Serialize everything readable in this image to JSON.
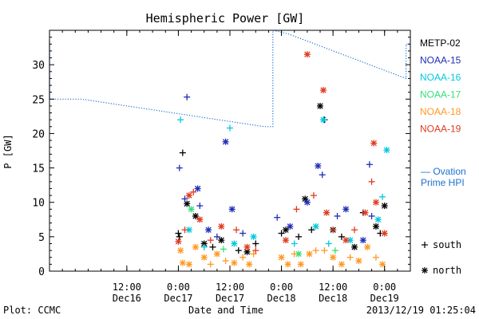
{
  "chart_data": {
    "type": "scatter",
    "title": "Hemispheric Power [GW]",
    "ylabel": "P [GW]",
    "xlabel": "Date and Time",
    "ylim": [
      0,
      35
    ],
    "yticks": [
      0,
      5,
      10,
      15,
      20,
      25,
      30
    ],
    "xlim": [
      "2013-12-15T18:00",
      "2013-12-19T06:00"
    ],
    "xticks": [
      {
        "time": "2013-12-16T12:00",
        "line1": "12:00",
        "line2": "Dec16"
      },
      {
        "time": "2013-12-17T00:00",
        "line1": "0:00",
        "line2": "Dec17"
      },
      {
        "time": "2013-12-17T12:00",
        "line1": "12:00",
        "line2": "Dec17"
      },
      {
        "time": "2013-12-18T00:00",
        "line1": "0:00",
        "line2": "Dec18"
      },
      {
        "time": "2013-12-18T12:00",
        "line1": "12:00",
        "line2": "Dec18"
      },
      {
        "time": "2013-12-19T00:00",
        "line1": "0:00",
        "line2": "Dec19"
      }
    ],
    "series": [
      {
        "name": "METP-02",
        "color": "#000000",
        "points": [
          {
            "t": "2013-12-17T00:00",
            "p": 5.5,
            "m": "+"
          },
          {
            "t": "2013-12-17T00:15",
            "p": 5.0,
            "m": "+"
          },
          {
            "t": "2013-12-17T01:00",
            "p": 17.2,
            "m": "+"
          },
          {
            "t": "2013-12-17T02:00",
            "p": 9.8,
            "m": "*"
          },
          {
            "t": "2013-12-17T04:00",
            "p": 8.0,
            "m": "*"
          },
          {
            "t": "2013-12-17T06:00",
            "p": 4.0,
            "m": "*"
          },
          {
            "t": "2013-12-17T08:00",
            "p": 3.5,
            "m": "+"
          },
          {
            "t": "2013-12-17T10:00",
            "p": 4.5,
            "m": "*"
          },
          {
            "t": "2013-12-17T14:00",
            "p": 3.0,
            "m": "+"
          },
          {
            "t": "2013-12-17T16:00",
            "p": 2.8,
            "m": "*"
          },
          {
            "t": "2013-12-17T18:00",
            "p": 4.0,
            "m": "+"
          },
          {
            "t": "2013-12-18T00:00",
            "p": 5.5,
            "m": "+"
          },
          {
            "t": "2013-12-18T01:00",
            "p": 6.0,
            "m": "*"
          },
          {
            "t": "2013-12-18T04:00",
            "p": 5.0,
            "m": "+"
          },
          {
            "t": "2013-12-18T05:30",
            "p": 10.5,
            "m": "*"
          },
          {
            "t": "2013-12-18T07:00",
            "p": 6.0,
            "m": "+"
          },
          {
            "t": "2013-12-18T09:00",
            "p": 24.0,
            "m": "*"
          },
          {
            "t": "2013-12-18T10:00",
            "p": 22.0,
            "m": "+"
          },
          {
            "t": "2013-12-18T12:00",
            "p": 6.0,
            "m": "*"
          },
          {
            "t": "2013-12-18T14:00",
            "p": 5.0,
            "m": "+"
          },
          {
            "t": "2013-12-18T17:00",
            "p": 3.5,
            "m": "*"
          },
          {
            "t": "2013-12-18T19:00",
            "p": 8.5,
            "m": "+"
          },
          {
            "t": "2013-12-18T22:00",
            "p": 6.5,
            "m": "*"
          },
          {
            "t": "2013-12-19T00:00",
            "p": 9.5,
            "m": "*"
          },
          {
            "t": "2013-12-18T23:00",
            "p": 5.5,
            "m": "+"
          }
        ]
      },
      {
        "name": "NOAA-15",
        "color": "#1f2db5",
        "points": [
          {
            "t": "2013-12-17T00:15",
            "p": 15.0,
            "m": "+"
          },
          {
            "t": "2013-12-17T02:00",
            "p": 25.3,
            "m": "+"
          },
          {
            "t": "2013-12-17T01:30",
            "p": 10.5,
            "m": "+"
          },
          {
            "t": "2013-12-17T04:30",
            "p": 12.0,
            "m": "*"
          },
          {
            "t": "2013-12-17T05:00",
            "p": 9.5,
            "m": "+"
          },
          {
            "t": "2013-12-17T07:00",
            "p": 6.0,
            "m": "*"
          },
          {
            "t": "2013-12-17T09:00",
            "p": 5.0,
            "m": "+"
          },
          {
            "t": "2013-12-17T11:00",
            "p": 18.8,
            "m": "*"
          },
          {
            "t": "2013-12-17T12:30",
            "p": 9.0,
            "m": "*"
          },
          {
            "t": "2013-12-17T15:00",
            "p": 5.5,
            "m": "+"
          },
          {
            "t": "2013-12-17T23:00",
            "p": 7.8,
            "m": "+"
          },
          {
            "t": "2013-12-18T02:00",
            "p": 6.5,
            "m": "*"
          },
          {
            "t": "2013-12-18T06:00",
            "p": 10.0,
            "m": "*"
          },
          {
            "t": "2013-12-18T08:30",
            "p": 15.3,
            "m": "*"
          },
          {
            "t": "2013-12-18T09:30",
            "p": 14.0,
            "m": "+"
          },
          {
            "t": "2013-12-18T13:00",
            "p": 8.0,
            "m": "+"
          },
          {
            "t": "2013-12-18T15:00",
            "p": 9.0,
            "m": "*"
          },
          {
            "t": "2013-12-18T19:00",
            "p": 4.5,
            "m": "*"
          },
          {
            "t": "2013-12-18T21:00",
            "p": 8.0,
            "m": "+"
          },
          {
            "t": "2013-12-18T20:30",
            "p": 15.5,
            "m": "+"
          }
        ]
      },
      {
        "name": "NOAA-16",
        "color": "#00c8e0",
        "points": [
          {
            "t": "2013-12-17T00:30",
            "p": 22.0,
            "m": "+"
          },
          {
            "t": "2013-12-17T12:00",
            "p": 20.8,
            "m": "+"
          },
          {
            "t": "2013-12-17T02:30",
            "p": 6.0,
            "m": "*"
          },
          {
            "t": "2013-12-17T06:00",
            "p": 3.5,
            "m": "+"
          },
          {
            "t": "2013-12-17T13:00",
            "p": 4.0,
            "m": "*"
          },
          {
            "t": "2013-12-17T17:30",
            "p": 5.0,
            "m": "*"
          },
          {
            "t": "2013-12-18T03:00",
            "p": 4.0,
            "m": "+"
          },
          {
            "t": "2013-12-18T08:00",
            "p": 6.5,
            "m": "*"
          },
          {
            "t": "2013-12-18T09:45",
            "p": 22.0,
            "m": "*"
          },
          {
            "t": "2013-12-18T11:00",
            "p": 4.0,
            "m": "+"
          },
          {
            "t": "2013-12-18T16:00",
            "p": 4.5,
            "m": "*"
          },
          {
            "t": "2013-12-18T23:30",
            "p": 10.8,
            "m": "+"
          },
          {
            "t": "2013-12-19T00:30",
            "p": 17.6,
            "m": "*"
          },
          {
            "t": "2013-12-18T22:30",
            "p": 7.5,
            "m": "*"
          }
        ]
      },
      {
        "name": "NOAA-17",
        "color": "#33e07a",
        "points": [
          {
            "t": "2013-12-17T03:00",
            "p": 9.0,
            "m": "*"
          },
          {
            "t": "2013-12-17T10:30",
            "p": 3.2,
            "m": "+"
          },
          {
            "t": "2013-12-18T04:00",
            "p": 2.5,
            "m": "*"
          },
          {
            "t": "2013-12-18T12:30",
            "p": 3.0,
            "m": "+"
          }
        ]
      },
      {
        "name": "NOAA-18",
        "color": "#ff9922",
        "points": [
          {
            "t": "2013-12-17T00:30",
            "p": 3.0,
            "m": "*"
          },
          {
            "t": "2013-12-17T01:00",
            "p": 1.2,
            "m": "*"
          },
          {
            "t": "2013-12-17T02:30",
            "p": 1.0,
            "m": "*"
          },
          {
            "t": "2013-12-17T04:00",
            "p": 3.5,
            "m": "*"
          },
          {
            "t": "2013-12-17T06:00",
            "p": 2.0,
            "m": "*"
          },
          {
            "t": "2013-12-17T07:30",
            "p": 1.0,
            "m": "+"
          },
          {
            "t": "2013-12-17T09:00",
            "p": 2.5,
            "m": "*"
          },
          {
            "t": "2013-12-17T11:00",
            "p": 1.5,
            "m": "+"
          },
          {
            "t": "2013-12-17T13:00",
            "p": 1.2,
            "m": "*"
          },
          {
            "t": "2013-12-17T15:00",
            "p": 2.0,
            "m": "+"
          },
          {
            "t": "2013-12-17T16:30",
            "p": 1.0,
            "m": "*"
          },
          {
            "t": "2013-12-17T17:30",
            "p": 2.5,
            "m": "+"
          },
          {
            "t": "2013-12-18T00:00",
            "p": 2.0,
            "m": "*"
          },
          {
            "t": "2013-12-18T01:30",
            "p": 1.0,
            "m": "*"
          },
          {
            "t": "2013-12-18T03:00",
            "p": 2.5,
            "m": "+"
          },
          {
            "t": "2013-12-18T04:30",
            "p": 1.0,
            "m": "*"
          },
          {
            "t": "2013-12-18T06:30",
            "p": 2.5,
            "m": "*"
          },
          {
            "t": "2013-12-18T08:00",
            "p": 3.0,
            "m": "+"
          },
          {
            "t": "2013-12-18T10:00",
            "p": 3.0,
            "m": "+"
          },
          {
            "t": "2013-12-18T12:00",
            "p": 2.0,
            "m": "*"
          },
          {
            "t": "2013-12-18T14:00",
            "p": 1.0,
            "m": "*"
          },
          {
            "t": "2013-12-18T16:00",
            "p": 2.0,
            "m": "+"
          },
          {
            "t": "2013-12-18T18:00",
            "p": 1.5,
            "m": "*"
          },
          {
            "t": "2013-12-18T20:00",
            "p": 3.5,
            "m": "*"
          },
          {
            "t": "2013-12-18T22:00",
            "p": 2.0,
            "m": "+"
          },
          {
            "t": "2013-12-18T23:30",
            "p": 1.0,
            "m": "*"
          }
        ]
      },
      {
        "name": "NOAA-19",
        "color": "#e03a1e",
        "points": [
          {
            "t": "2013-12-17T00:00",
            "p": 4.3,
            "m": "*"
          },
          {
            "t": "2013-12-17T01:30",
            "p": 6.0,
            "m": "+"
          },
          {
            "t": "2013-12-17T02:30",
            "p": 11.0,
            "m": "*"
          },
          {
            "t": "2013-12-17T03:30",
            "p": 11.5,
            "m": "+"
          },
          {
            "t": "2013-12-17T05:00",
            "p": 7.5,
            "m": "*"
          },
          {
            "t": "2013-12-17T07:30",
            "p": 4.5,
            "m": "+"
          },
          {
            "t": "2013-12-17T10:00",
            "p": 6.5,
            "m": "*"
          },
          {
            "t": "2013-12-17T13:30",
            "p": 6.0,
            "m": "+"
          },
          {
            "t": "2013-12-17T16:00",
            "p": 3.5,
            "m": "*"
          },
          {
            "t": "2013-12-17T18:00",
            "p": 3.0,
            "m": "+"
          },
          {
            "t": "2013-12-18T01:00",
            "p": 4.5,
            "m": "*"
          },
          {
            "t": "2013-12-18T03:30",
            "p": 9.0,
            "m": "+"
          },
          {
            "t": "2013-12-18T06:00",
            "p": 31.5,
            "m": "*"
          },
          {
            "t": "2013-12-18T07:30",
            "p": 11.0,
            "m": "+"
          },
          {
            "t": "2013-12-18T09:45",
            "p": 26.3,
            "m": "*"
          },
          {
            "t": "2013-12-18T10:30",
            "p": 8.5,
            "m": "*"
          },
          {
            "t": "2013-12-18T12:00",
            "p": 6.0,
            "m": "+"
          },
          {
            "t": "2013-12-18T15:00",
            "p": 4.5,
            "m": "*"
          },
          {
            "t": "2013-12-18T17:00",
            "p": 6.0,
            "m": "+"
          },
          {
            "t": "2013-12-18T19:30",
            "p": 8.5,
            "m": "*"
          },
          {
            "t": "2013-12-18T21:00",
            "p": 13.0,
            "m": "+"
          },
          {
            "t": "2013-12-18T21:30",
            "p": 18.6,
            "m": "*"
          },
          {
            "t": "2013-12-19T00:00",
            "p": 5.5,
            "m": "*"
          },
          {
            "t": "2013-12-18T22:00",
            "p": 10.0,
            "m": "*"
          }
        ]
      }
    ],
    "reference_line": {
      "name": "Ovation Prime HPI",
      "label_line1": "— Ovation",
      "label_line2": "Prime HPI",
      "color": "#1f6fd0",
      "points": [
        {
          "t": "2013-12-15T18:00",
          "p": 25.0
        },
        {
          "t": "2013-12-15T18:00",
          "p": 33.5
        },
        {
          "t": "2013-12-15T18:00",
          "p": 25.0
        },
        {
          "t": "2013-12-16T01:30",
          "p": 25.0
        },
        {
          "t": "2013-12-17T20:00",
          "p": 21.0
        },
        {
          "t": "2013-12-17T22:00",
          "p": 21.0
        },
        {
          "t": "2013-12-17T22:00",
          "p": 36.0
        },
        {
          "t": "2013-12-18T01:30",
          "p": 34.5
        },
        {
          "t": "2013-12-19T05:00",
          "p": 28.0
        },
        {
          "t": "2013-12-19T05:00",
          "p": 33.0
        },
        {
          "t": "2013-12-19T06:00",
          "p": 33.0
        }
      ]
    },
    "symbol_legend": [
      {
        "symbol": "+",
        "label": "south"
      },
      {
        "symbol": "*",
        "label": "north"
      }
    ],
    "grid": false,
    "legend_position": "right"
  },
  "footer": {
    "plot_credit": "Plot: CCMC",
    "timestamp": "2013/12/19 01:25:04"
  }
}
